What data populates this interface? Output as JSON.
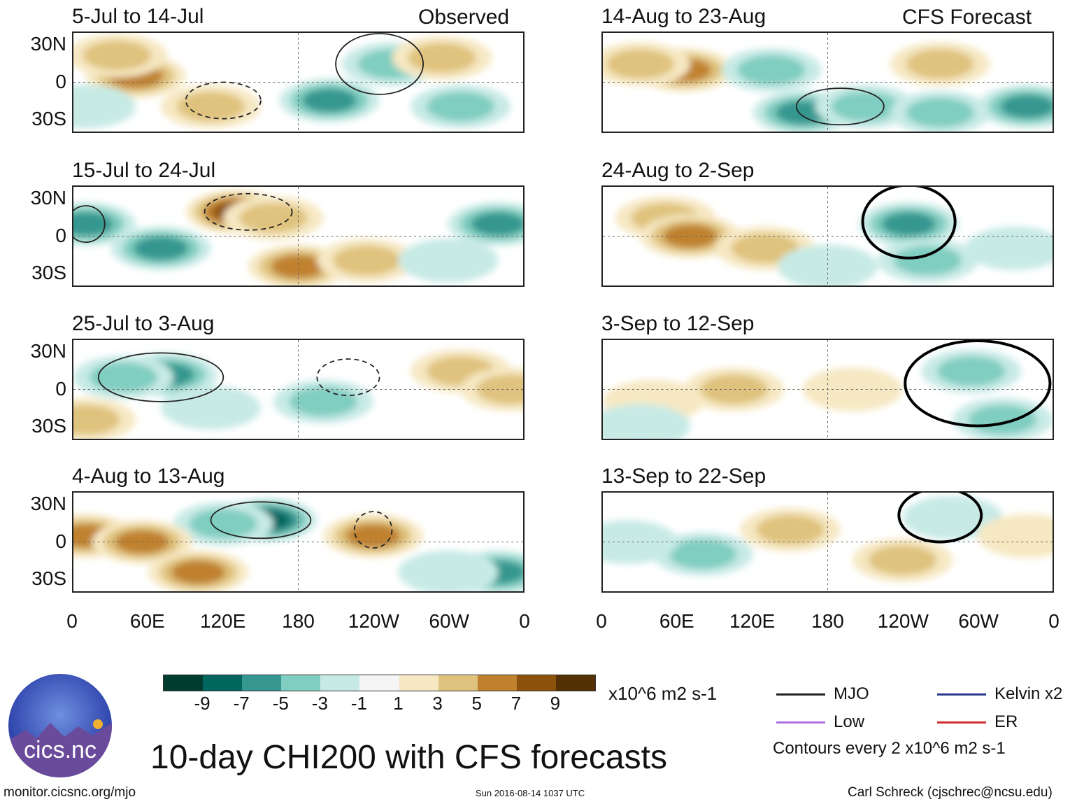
{
  "figure": {
    "title": "10-day CHI200 with CFS forecasts",
    "source": "monitor.cicsnc.org/mjo",
    "timestamp": "Sun 2016-08-14 1037 UTC",
    "author": "Carl Schreck (cjschrec@ncsu.edu)",
    "logo_text": "cics.nc",
    "observed_label": "Observed",
    "forecast_label": "CFS Forecast"
  },
  "axes": {
    "lat_labels": [
      "30N",
      "0",
      "30S"
    ],
    "lon_labels": [
      "0",
      "60E",
      "120E",
      "180",
      "120W",
      "60W",
      "0"
    ],
    "lon_range": [
      0,
      360
    ],
    "lat_range": [
      -40,
      40
    ]
  },
  "colorbar": {
    "unit": "x10^6 m2 s-1",
    "ticks": [
      "-9",
      "-7",
      "-5",
      "-3",
      "-1",
      "1",
      "3",
      "5",
      "7",
      "9"
    ],
    "colors": [
      "#003c30",
      "#01665e",
      "#35978f",
      "#80cdc1",
      "#c7eae5",
      "#f5f5f5",
      "#f6e8c3",
      "#dfc27d",
      "#bf812d",
      "#8c510a",
      "#543005"
    ]
  },
  "legend": {
    "items": [
      {
        "label": "MJO",
        "color": "#222222"
      },
      {
        "label": "Kelvin x2",
        "color": "#2b3a8c"
      },
      {
        "label": "Low",
        "color": "#b070e0"
      },
      {
        "label": "ER",
        "color": "#d03030"
      }
    ],
    "note": "Contours every 2 x10^6 m2 s-1"
  },
  "panels": [
    {
      "title": "5-Jul to 14-Jul",
      "features": [
        {
          "lon": 50,
          "lat": 5,
          "v": 5
        },
        {
          "lon": 35,
          "lat": 22,
          "v": 3
        },
        {
          "lon": 110,
          "lat": -20,
          "v": 3
        },
        {
          "lon": 205,
          "lat": -15,
          "v": -5
        },
        {
          "lon": 255,
          "lat": 15,
          "v": -3
        },
        {
          "lon": 310,
          "lat": -20,
          "v": -3
        },
        {
          "lon": 295,
          "lat": 20,
          "v": 3
        },
        {
          "lon": 10,
          "lat": -20,
          "v": -1
        }
      ],
      "contours": [
        {
          "lon": 245,
          "lat": 15,
          "rlon": 35,
          "rlat": 25,
          "dash": false
        },
        {
          "lon": 120,
          "lat": -15,
          "rlon": 30,
          "rlat": 15,
          "dash": true
        }
      ]
    },
    {
      "title": "15-Jul to 24-Jul",
      "features": [
        {
          "lon": 130,
          "lat": 20,
          "v": 7
        },
        {
          "lon": 160,
          "lat": 15,
          "v": 3
        },
        {
          "lon": 70,
          "lat": -10,
          "v": -5
        },
        {
          "lon": 10,
          "lat": 10,
          "v": -5
        },
        {
          "lon": 180,
          "lat": -25,
          "v": 5
        },
        {
          "lon": 235,
          "lat": -20,
          "v": 3
        },
        {
          "lon": 340,
          "lat": 10,
          "v": -5
        },
        {
          "lon": 300,
          "lat": -20,
          "v": -1
        }
      ],
      "contours": [
        {
          "lon": 140,
          "lat": 20,
          "rlon": 35,
          "rlat": 15,
          "dash": true
        },
        {
          "lon": 10,
          "lat": 10,
          "rlon": 15,
          "rlat": 15,
          "dash": false
        }
      ]
    },
    {
      "title": "25-Jul to 3-Aug",
      "features": [
        {
          "lon": 75,
          "lat": 12,
          "v": -5
        },
        {
          "lon": 40,
          "lat": 10,
          "v": -3
        },
        {
          "lon": 200,
          "lat": -10,
          "v": -3
        },
        {
          "lon": 310,
          "lat": 15,
          "v": 3
        },
        {
          "lon": 350,
          "lat": 0,
          "v": 3
        },
        {
          "lon": 110,
          "lat": -15,
          "v": -1
        },
        {
          "lon": 10,
          "lat": -25,
          "v": 3
        }
      ],
      "contours": [
        {
          "lon": 70,
          "lat": 10,
          "rlon": 50,
          "rlat": 20,
          "dash": false
        },
        {
          "lon": 220,
          "lat": 10,
          "rlon": 25,
          "rlat": 15,
          "dash": true
        }
      ]
    },
    {
      "title": "4-Aug to 13-Aug",
      "features": [
        {
          "lon": 155,
          "lat": 18,
          "v": -7
        },
        {
          "lon": 120,
          "lat": 15,
          "v": -3
        },
        {
          "lon": 10,
          "lat": 5,
          "v": 5
        },
        {
          "lon": 55,
          "lat": 0,
          "v": 5
        },
        {
          "lon": 100,
          "lat": -25,
          "v": 5
        },
        {
          "lon": 240,
          "lat": 5,
          "v": 5
        },
        {
          "lon": 340,
          "lat": -25,
          "v": -5
        },
        {
          "lon": 300,
          "lat": -25,
          "v": -1
        }
      ],
      "contours": [
        {
          "lon": 150,
          "lat": 18,
          "rlon": 40,
          "rlat": 15,
          "dash": false
        },
        {
          "lon": 240,
          "lat": 10,
          "rlon": 15,
          "rlat": 15,
          "dash": true
        }
      ]
    },
    {
      "title": "14-Aug to 23-Aug",
      "features": [
        {
          "lon": 65,
          "lat": 10,
          "v": 5
        },
        {
          "lon": 30,
          "lat": 15,
          "v": 3
        },
        {
          "lon": 135,
          "lat": 10,
          "v": -3
        },
        {
          "lon": 160,
          "lat": -25,
          "v": -5
        },
        {
          "lon": 210,
          "lat": -20,
          "v": -3
        },
        {
          "lon": 270,
          "lat": -25,
          "v": -3
        },
        {
          "lon": 340,
          "lat": -20,
          "v": -5
        },
        {
          "lon": 270,
          "lat": 15,
          "v": 3
        }
      ],
      "contours": [
        {
          "lon": 190,
          "lat": -20,
          "rlon": 35,
          "rlat": 15,
          "dash": false
        }
      ]
    },
    {
      "title": "24-Aug to 2-Sep",
      "features": [
        {
          "lon": 50,
          "lat": 15,
          "v": 3
        },
        {
          "lon": 70,
          "lat": 0,
          "v": 5
        },
        {
          "lon": 130,
          "lat": -10,
          "v": 3
        },
        {
          "lon": 245,
          "lat": 10,
          "v": -5
        },
        {
          "lon": 260,
          "lat": -20,
          "v": -3
        },
        {
          "lon": 330,
          "lat": -10,
          "v": -1
        },
        {
          "lon": 180,
          "lat": -25,
          "v": -1
        }
      ],
      "mjo": [
        {
          "lon": 245,
          "lat": 12,
          "rlon": 37,
          "rlat": 30
        }
      ]
    },
    {
      "title": "3-Sep to 12-Sep",
      "features": [
        {
          "lon": 105,
          "lat": 0,
          "v": 3
        },
        {
          "lon": 40,
          "lat": -10,
          "v": 1
        },
        {
          "lon": 295,
          "lat": 15,
          "v": -3
        },
        {
          "lon": 320,
          "lat": -25,
          "v": -3
        },
        {
          "lon": 200,
          "lat": 0,
          "v": 1
        },
        {
          "lon": 30,
          "lat": -30,
          "v": -1
        }
      ],
      "mjo": [
        {
          "lon": 300,
          "lat": 5,
          "rlon": 58,
          "rlat": 35
        }
      ]
    },
    {
      "title": "13-Sep to 22-Sep",
      "features": [
        {
          "lon": 150,
          "lat": 10,
          "v": 3
        },
        {
          "lon": 80,
          "lat": -10,
          "v": -3
        },
        {
          "lon": 240,
          "lat": -15,
          "v": 3
        },
        {
          "lon": 280,
          "lat": 20,
          "v": -1
        },
        {
          "lon": 20,
          "lat": 0,
          "v": -1
        },
        {
          "lon": 340,
          "lat": 5,
          "v": 1
        }
      ],
      "mjo": [
        {
          "lon": 270,
          "lat": 22,
          "rlon": 33,
          "rlat": 22
        }
      ]
    }
  ]
}
